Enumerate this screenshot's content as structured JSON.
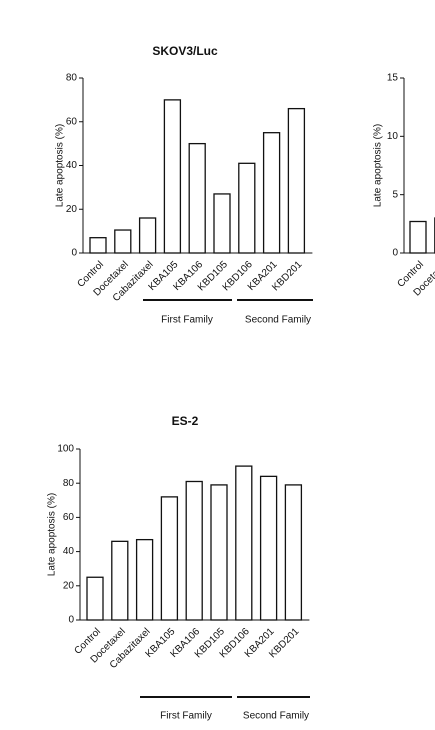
{
  "chart_data": [
    {
      "type": "bar",
      "title": "SKOV3/Luc",
      "y_label": "Late apoptosis (%)",
      "categories": [
        "Control",
        "Docetaxel",
        "Cabazitaxel",
        "KBA105",
        "KBA106",
        "KBD105",
        "KBD106",
        "KBA201",
        "KBD201"
      ],
      "values": [
        7,
        10.5,
        16,
        70,
        50,
        27,
        41,
        55,
        66
      ],
      "color": "#ffffff",
      "ylim": [
        0,
        80
      ],
      "yticks": [
        0,
        20,
        40,
        60,
        80
      ],
      "annotations": [
        "First Family",
        "Second Family"
      ]
    },
    {
      "type": "bar",
      "title": "ES-2",
      "y_label": "Late apoptosis (%)",
      "categories": [
        "Control",
        "Docetaxel",
        "Cabazitaxel",
        "KBA105",
        "KBA106",
        "KBD105",
        "KBD106",
        "KBA201",
        "KBD201"
      ],
      "values": [
        25,
        46,
        47,
        72,
        81,
        79,
        90,
        84,
        79
      ],
      "color": "#ffffff",
      "ylim": [
        0,
        100
      ],
      "yticks": [
        0,
        20,
        40,
        60,
        80,
        100
      ],
      "annotations": [
        "First Family",
        "Second Family"
      ]
    },
    {
      "type": "bar",
      "y_label": "Late apoptosis (%)",
      "categories": [
        "Control",
        "Docetaxel"
      ],
      "values": [
        2.7,
        3
      ],
      "color": "#ffffff",
      "ylim": [
        0,
        15
      ],
      "yticks": [
        0,
        5,
        10,
        15
      ]
    }
  ]
}
